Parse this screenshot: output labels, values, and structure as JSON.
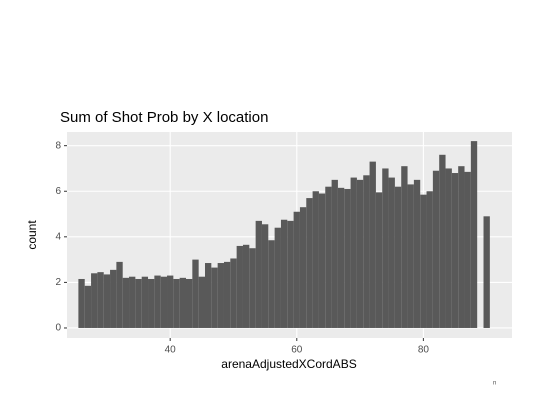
{
  "chart_data": {
    "type": "histogram",
    "title": "Sum of Shot Prob by X location",
    "x_label": "arenaAdjustedXCordABS",
    "y_label": "count",
    "annotation": "n",
    "color": "#595959",
    "bins": [
      25.5,
      26.5,
      27.5,
      28.5,
      29.5,
      30.5,
      31.5,
      32.5,
      33.5,
      34.5,
      35.5,
      36.5,
      37.5,
      38.5,
      39.5,
      40.5,
      41.5,
      42.5,
      43.5,
      44.5,
      45.5,
      46.5,
      47.5,
      48.5,
      49.5,
      50.5,
      51.5,
      52.5,
      53.5,
      54.5,
      55.5,
      56.5,
      57.5,
      58.5,
      59.5,
      60.5,
      61.5,
      62.5,
      63.5,
      64.5,
      65.5,
      66.5,
      67.5,
      68.5,
      69.5,
      70.5,
      71.5,
      72.5,
      73.5,
      74.5,
      75.5,
      76.5,
      77.5,
      78.5,
      79.5,
      80.5,
      81.5,
      82.5,
      83.5,
      84.5,
      85.5,
      86.5,
      87.5,
      88.5,
      89.5,
      90.5
    ],
    "values": [
      2.15,
      1.85,
      2.4,
      2.45,
      2.35,
      2.55,
      2.9,
      2.2,
      2.25,
      2.15,
      2.25,
      2.15,
      2.3,
      2.25,
      2.3,
      2.15,
      2.2,
      2.15,
      3.0,
      2.25,
      2.85,
      2.65,
      2.85,
      2.9,
      3.05,
      3.6,
      3.65,
      3.5,
      4.7,
      4.55,
      3.85,
      4.4,
      4.75,
      4.7,
      5.1,
      5.3,
      5.7,
      6.0,
      5.9,
      6.2,
      6.5,
      6.15,
      6.1,
      6.6,
      6.5,
      6.7,
      7.3,
      5.95,
      7.0,
      6.6,
      6.2,
      7.1,
      6.3,
      6.5,
      5.85,
      6.0,
      6.9,
      7.6,
      7.0,
      6.8,
      7.1,
      6.85,
      8.2,
      0,
      4.9
    ],
    "xlim": [
      23.7,
      94.0
    ],
    "ylim": [
      -0.44,
      8.6
    ],
    "xticks": [
      40,
      60,
      80
    ],
    "yticks": [
      0,
      2,
      4,
      6,
      8
    ],
    "grid": true
  }
}
